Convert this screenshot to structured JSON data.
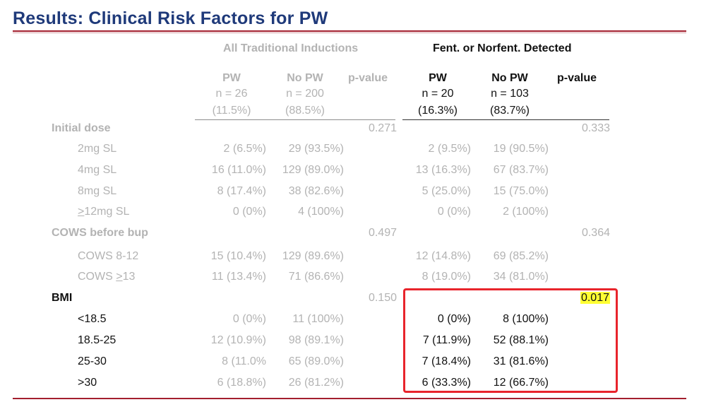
{
  "title": "Results: Clinical Risk Factors for PW",
  "groups": {
    "all": "All Traditional Inductions",
    "fent": "Fent. or Norfent. Detected"
  },
  "all_cols": {
    "pw": {
      "label": "PW",
      "n": "n = 26",
      "pct": "(11.5%)"
    },
    "nopw": {
      "label": "No PW",
      "n": "n = 200",
      "pct": "(88.5%)"
    },
    "p": {
      "label": "p-value"
    }
  },
  "fent_cols": {
    "pw": {
      "label": "PW",
      "n": "n = 20",
      "pct": "(16.3%)"
    },
    "nopw": {
      "label": "No PW",
      "n": "n = 103",
      "pct": "(83.7%)"
    },
    "p": {
      "label": "p-value"
    }
  },
  "sections": {
    "dose": {
      "label": "Initial dose",
      "p_all": "0.271",
      "p_fent": "0.333"
    },
    "cows": {
      "label": "COWS before bup",
      "p_all": "0.497",
      "p_fent": "0.364"
    },
    "bmi": {
      "label": "BMI",
      "p_all": "0.150",
      "p_fent": "0.017"
    }
  },
  "rows": [
    {
      "prefix": "",
      "label": "2mg SL",
      "a_pw": "2 (6.5%)",
      "a_no": "29 (93.5%)",
      "f_pw": "2 (9.5%)",
      "f_no": "19 (90.5%)"
    },
    {
      "prefix": "",
      "label": "4mg SL",
      "a_pw": "16 (11.0%)",
      "a_no": "129 (89.0%)",
      "f_pw": "13 (16.3%)",
      "f_no": "67 (83.7%)"
    },
    {
      "prefix": "",
      "label": "8mg SL",
      "a_pw": "8 (17.4%)",
      "a_no": "38 (82.6%)",
      "f_pw": "5 (25.0%)",
      "f_no": "15 (75.0%)"
    },
    {
      "prefix": ">",
      "label": "12mg SL",
      "a_pw": "0 (0%)",
      "a_no": "4 (100%)",
      "f_pw": "0 (0%)",
      "f_no": "2 (100%)"
    },
    {
      "prefix": "",
      "label": "COWS 8-12",
      "a_pw": "15 (10.4%)",
      "a_no": "129 (89.6%)",
      "f_pw": "12 (14.8%)",
      "f_no": "69 (85.2%)"
    },
    {
      "prefix": "COWS ",
      "label": ">",
      "suffix": "13",
      "a_pw": "11 (13.4%)",
      "a_no": "71 (86.6%)",
      "f_pw": "8 (19.0%)",
      "f_no": "34 (81.0%)"
    },
    {
      "prefix": "",
      "label": "<18.5",
      "a_pw": "0 (0%)",
      "a_no": "11 (100%)",
      "f_pw": "0 (0%)",
      "f_no": "8 (100%)"
    },
    {
      "prefix": "",
      "label": "18.5-25",
      "a_pw": "12 (10.9%)",
      "a_no": "98 (89.1%)",
      "f_pw": "7 (11.9%)",
      "f_no": "52 (88.1%)"
    },
    {
      "prefix": "",
      "label": "25-30",
      "a_pw": "8 (11.0%",
      "a_no": "65 (89.0%)",
      "f_pw": "7 (18.4%)",
      "f_no": "31 (81.6%)"
    },
    {
      "prefix": "",
      "label": ">30",
      "a_pw": "6 (18.8%)",
      "a_no": "26 (81.2%)",
      "f_pw": "6 (33.3%)",
      "f_no": "12 (66.7%)"
    }
  ],
  "colors": {
    "title": "#1f3a7a",
    "rule": "#a31f2e",
    "muted": "#b3b3b3",
    "box": "#e8242c",
    "highlight": "#ffff33"
  }
}
